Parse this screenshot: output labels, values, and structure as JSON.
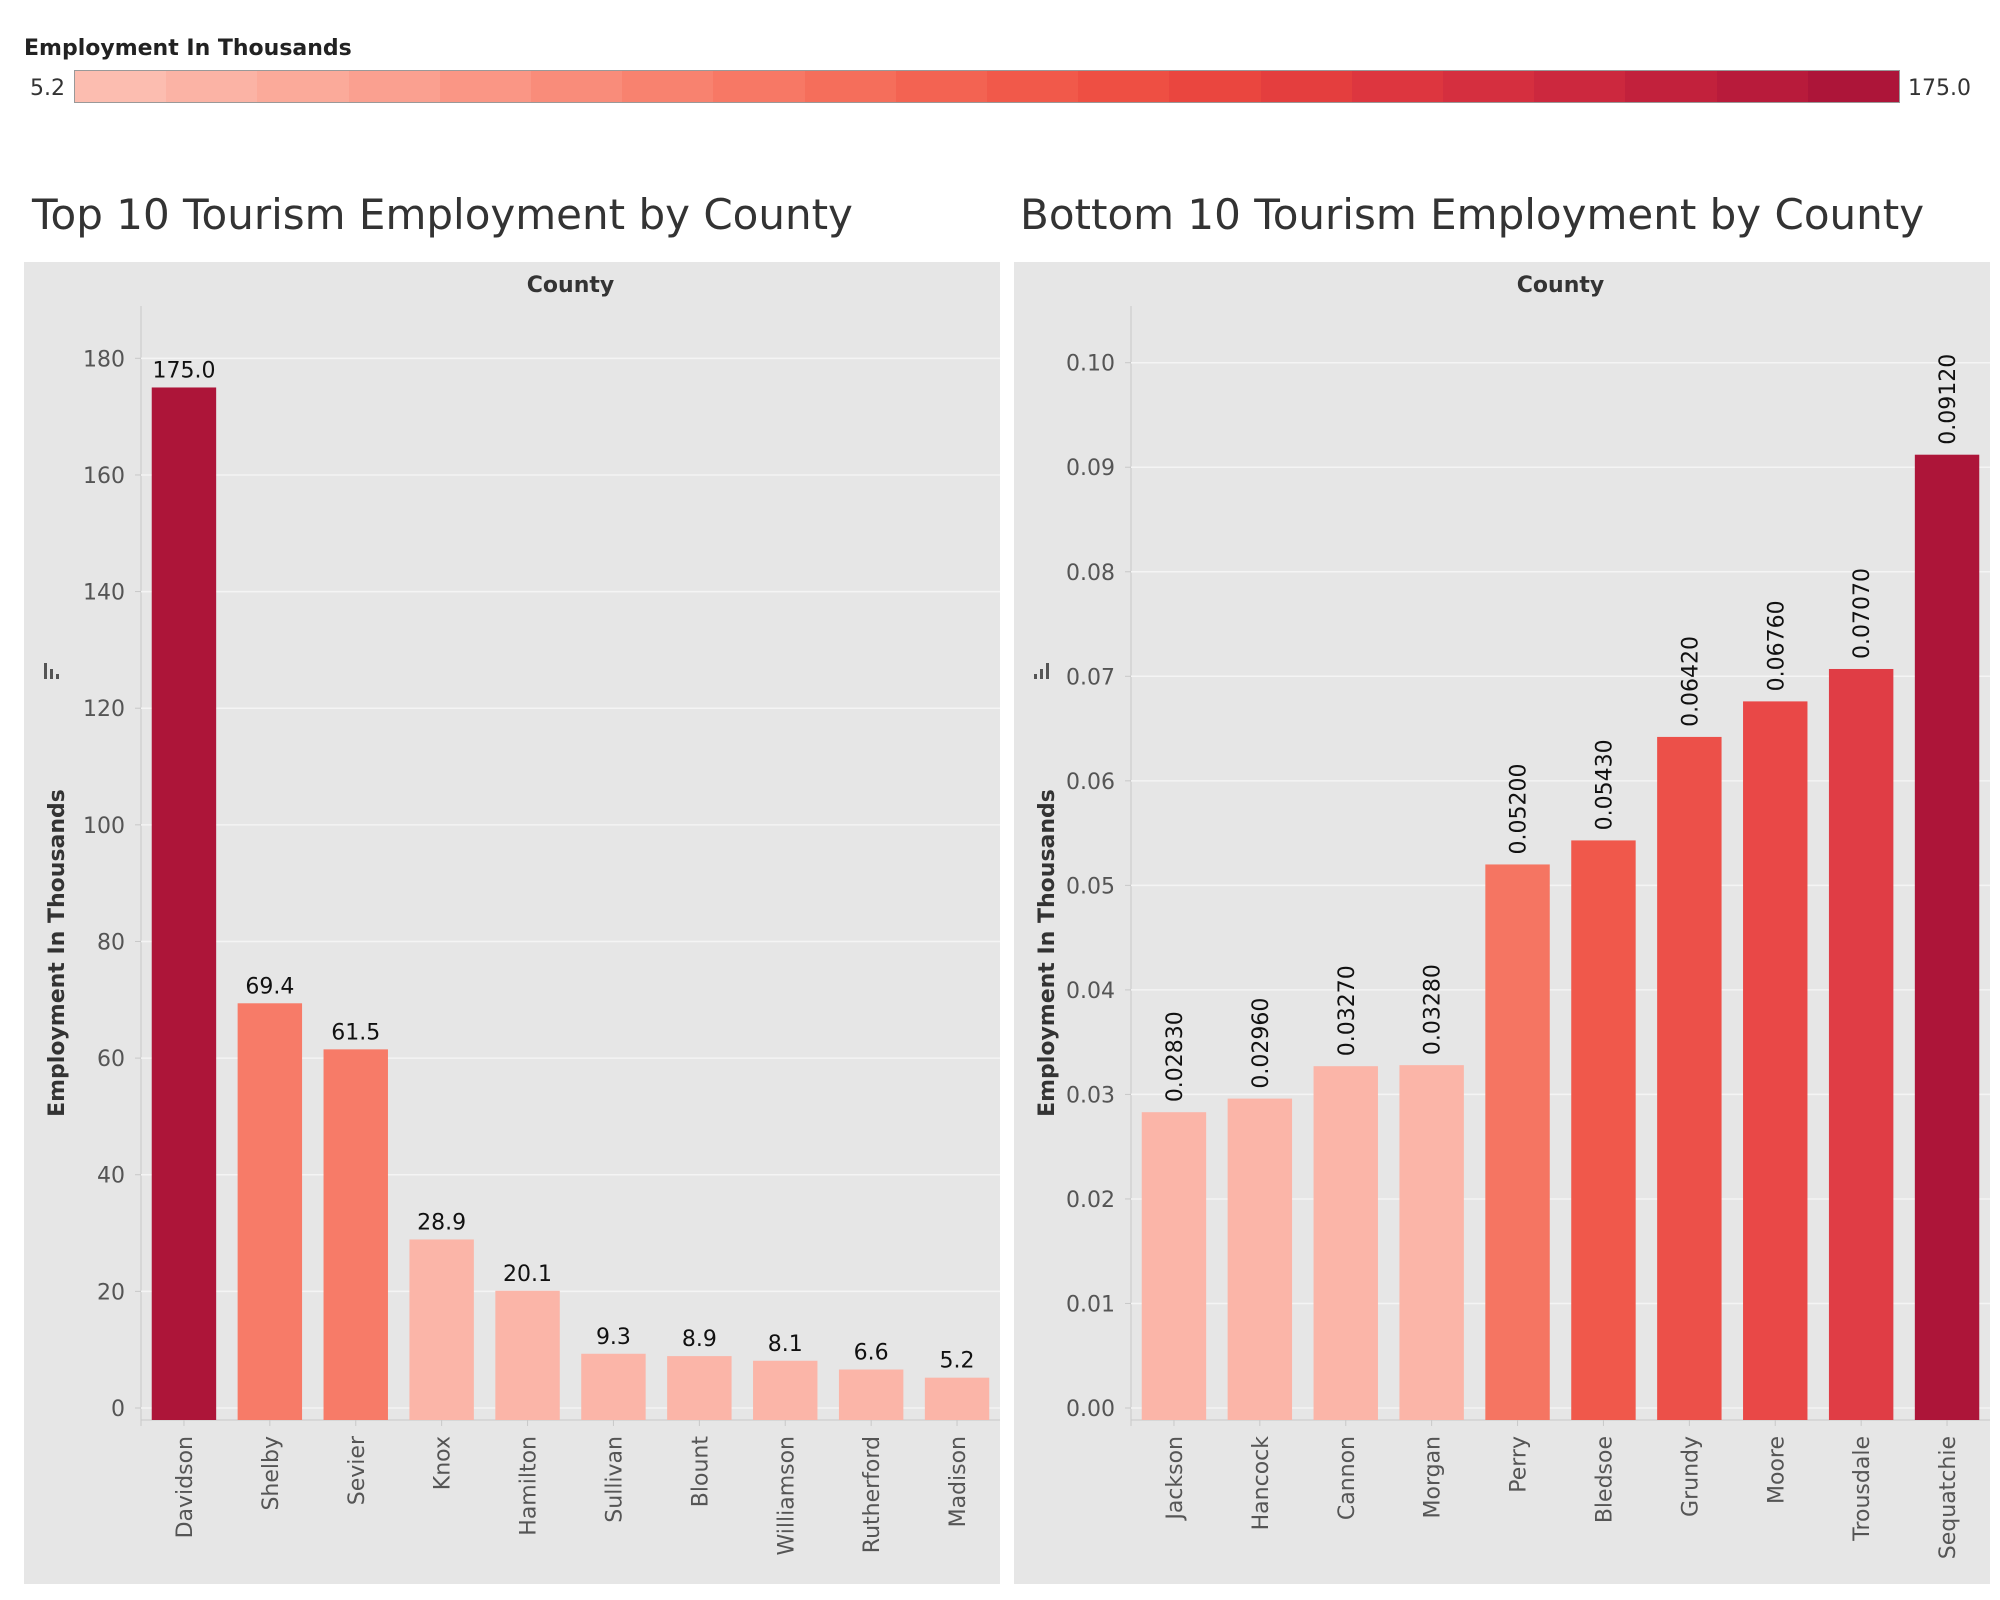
{
  "legend": {
    "title": "Employment In Thousands",
    "min_label": "5.2",
    "max_label": "175.0",
    "colors": [
      "#fcbdb0",
      "#fbb3a5",
      "#fbaa9a",
      "#faa090",
      "#fa9685",
      "#f98c7a",
      "#f8826f",
      "#f77865",
      "#f56e5b",
      "#f36352",
      "#f1594a",
      "#ee4f43",
      "#ea463f",
      "#e43e3e",
      "#dd363f",
      "#d52f3f",
      "#cc283e",
      "#c2213c",
      "#b81b3b",
      "#ad1539"
    ]
  },
  "chart_data": [
    {
      "type": "bar",
      "title": "Top 10 Tourism Employment by County",
      "header": "County",
      "xlabel": "County",
      "ylabel": "Employment In Thousands",
      "categories": [
        "Davidson",
        "Shelby",
        "Sevier",
        "Knox",
        "Hamilton",
        "Sullivan",
        "Blount",
        "Williamson",
        "Rutherford",
        "Madison"
      ],
      "values": [
        175.0,
        69.4,
        61.5,
        28.9,
        20.1,
        9.3,
        8.9,
        8.1,
        6.6,
        5.2
      ],
      "value_labels": [
        "175.0",
        "69.4",
        "61.5",
        "28.9",
        "20.1",
        "9.3",
        "8.9",
        "8.1",
        "6.6",
        "5.2"
      ],
      "colors": [
        "#ad1539",
        "#f77b68",
        "#f77b68",
        "#fbb5a8",
        "#fbb5a8",
        "#fbb5a8",
        "#fbb5a8",
        "#fbb5a8",
        "#fbb5a8",
        "#fbb5a8"
      ],
      "ylim": [
        0,
        190
      ],
      "yticks": [
        0,
        20,
        40,
        60,
        80,
        100,
        120,
        140,
        160,
        180
      ],
      "ytick_labels": [
        "0",
        "20",
        "40",
        "60",
        "80",
        "100",
        "120",
        "140",
        "160",
        "180"
      ],
      "grid": true,
      "label_orientation": "horizontal"
    },
    {
      "type": "bar",
      "title": "Bottom 10 Tourism Employment by County",
      "header": "County",
      "xlabel": "County",
      "ylabel": "Employment In Thousands",
      "categories": [
        "Jackson",
        "Hancock",
        "Cannon",
        "Morgan",
        "Perry",
        "Bledsoe",
        "Grundy",
        "Moore",
        "Trousdale",
        "Sequatchie"
      ],
      "values": [
        0.0283,
        0.0296,
        0.0327,
        0.0328,
        0.052,
        0.0543,
        0.0642,
        0.0676,
        0.0707,
        0.0912
      ],
      "value_labels": [
        "0.02830",
        "0.02960",
        "0.03270",
        "0.03280",
        "0.05200",
        "0.05430",
        "0.06420",
        "0.06760",
        "0.07070",
        "0.09120"
      ],
      "colors": [
        "#fbb5a8",
        "#fbb5a8",
        "#fbb5a8",
        "#fbb5a8",
        "#f57562",
        "#f0584b",
        "#ec5049",
        "#e94847",
        "#e03d45",
        "#ad1539"
      ],
      "ylim": [
        0,
        0.106
      ],
      "yticks": [
        0,
        0.01,
        0.02,
        0.03,
        0.04,
        0.05,
        0.06,
        0.07,
        0.08,
        0.09,
        0.1
      ],
      "ytick_labels": [
        "0.00",
        "0.01",
        "0.02",
        "0.03",
        "0.04",
        "0.05",
        "0.06",
        "0.07",
        "0.08",
        "0.09",
        "0.10"
      ],
      "grid": true,
      "label_orientation": "vertical"
    }
  ]
}
